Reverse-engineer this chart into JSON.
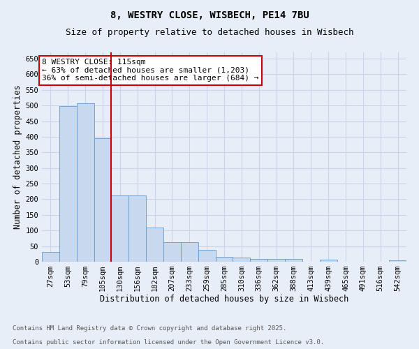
{
  "title1": "8, WESTRY CLOSE, WISBECH, PE14 7BU",
  "title2": "Size of property relative to detached houses in Wisbech",
  "xlabel": "Distribution of detached houses by size in Wisbech",
  "ylabel": "Number of detached properties",
  "categories": [
    "27sqm",
    "53sqm",
    "79sqm",
    "105sqm",
    "130sqm",
    "156sqm",
    "182sqm",
    "207sqm",
    "233sqm",
    "259sqm",
    "285sqm",
    "310sqm",
    "336sqm",
    "362sqm",
    "388sqm",
    "413sqm",
    "439sqm",
    "465sqm",
    "491sqm",
    "516sqm",
    "542sqm"
  ],
  "values": [
    31,
    497,
    507,
    395,
    213,
    213,
    110,
    63,
    63,
    38,
    16,
    14,
    9,
    9,
    10,
    0,
    7,
    1,
    0,
    0,
    4
  ],
  "bar_color": "#c8d8ee",
  "bar_edge_color": "#6699cc",
  "vline_color": "#cc0000",
  "annotation_text": "8 WESTRY CLOSE: 115sqm\n← 63% of detached houses are smaller (1,203)\n36% of semi-detached houses are larger (684) →",
  "annotation_box_edgecolor": "#cc0000",
  "ylim_max": 670,
  "yticks": [
    0,
    50,
    100,
    150,
    200,
    250,
    300,
    350,
    400,
    450,
    500,
    550,
    600,
    650
  ],
  "footer1": "Contains HM Land Registry data © Crown copyright and database right 2025.",
  "footer2": "Contains public sector information licensed under the Open Government Licence v3.0.",
  "bg_color": "#e8eef8",
  "grid_color": "#c8d4e8",
  "title_fontsize": 10,
  "subtitle_fontsize": 9,
  "axis_label_fontsize": 8.5,
  "tick_fontsize": 7.5,
  "footer_fontsize": 6.5,
  "annot_fontsize": 8
}
